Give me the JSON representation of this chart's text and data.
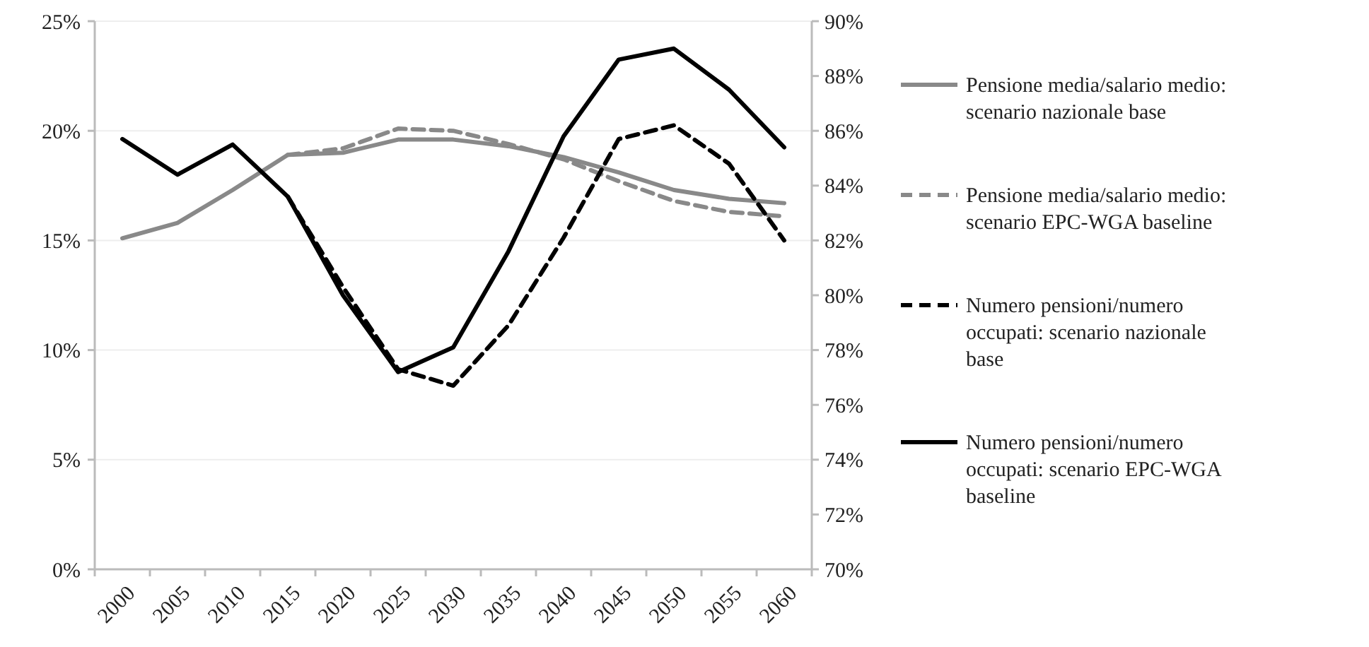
{
  "chart_data": {
    "type": "line",
    "categories": [
      "2000",
      "2005",
      "2010",
      "2015",
      "2020",
      "2025",
      "2030",
      "2035",
      "2040",
      "2045",
      "2050",
      "2055",
      "2060"
    ],
    "ylim": [
      0,
      25
    ],
    "yticks": [
      {
        "value": 0,
        "label": "0%"
      },
      {
        "value": 5,
        "label": "5%"
      },
      {
        "value": 10,
        "label": "10%"
      },
      {
        "value": 15,
        "label": "15%"
      },
      {
        "value": 20,
        "label": "20%"
      },
      {
        "value": 25,
        "label": "25%"
      }
    ],
    "y2lim": [
      70,
      90
    ],
    "y2ticks": [
      {
        "value": 70,
        "label": "70%"
      },
      {
        "value": 72,
        "label": "72%"
      },
      {
        "value": 74,
        "label": "74%"
      },
      {
        "value": 76,
        "label": "76%"
      },
      {
        "value": 78,
        "label": "78%"
      },
      {
        "value": 80,
        "label": "80%"
      },
      {
        "value": 82,
        "label": "82%"
      },
      {
        "value": 84,
        "label": "84%"
      },
      {
        "value": 86,
        "label": "86%"
      },
      {
        "value": 88,
        "label": "88%"
      },
      {
        "value": 90,
        "label": "90%"
      }
    ],
    "grid": "y",
    "legend": "right",
    "marker": "none",
    "series": [
      {
        "name": "Pensione media/salario medio: scenario nazionale base",
        "color": "#898989",
        "line_style": "solid",
        "values": [
          15.1,
          15.8,
          17.3,
          18.9,
          19.0,
          19.6,
          19.6,
          19.3,
          18.8,
          18.1,
          17.3,
          16.9,
          16.7
        ]
      },
      {
        "name": "Pensione media/salario medio: scenario EPC-WGA baseline",
        "color": "#898989",
        "line_style": "dashed",
        "values": [
          null,
          null,
          null,
          18.9,
          19.2,
          20.1,
          20.0,
          19.4,
          18.7,
          17.7,
          16.8,
          16.3,
          16.1
        ]
      },
      {
        "name": "Numero pensioni/numero occupati: scenario nazionale base",
        "color": "#000000",
        "line_style": "dashed",
        "axis": "y2",
        "values": [
          null,
          null,
          null,
          83.6,
          80.3,
          77.3,
          76.7,
          78.9,
          82.1,
          85.7,
          86.2,
          84.8,
          82.0
        ]
      },
      {
        "name": "Numero pensioni/numero occupati: scenario EPC-WGA baseline",
        "color": "#000000",
        "line_style": "solid",
        "axis": "y2",
        "values": [
          85.7,
          84.4,
          85.5,
          83.6,
          80.0,
          77.2,
          78.1,
          81.6,
          85.8,
          88.6,
          89.0,
          87.5,
          85.4
        ]
      }
    ]
  }
}
